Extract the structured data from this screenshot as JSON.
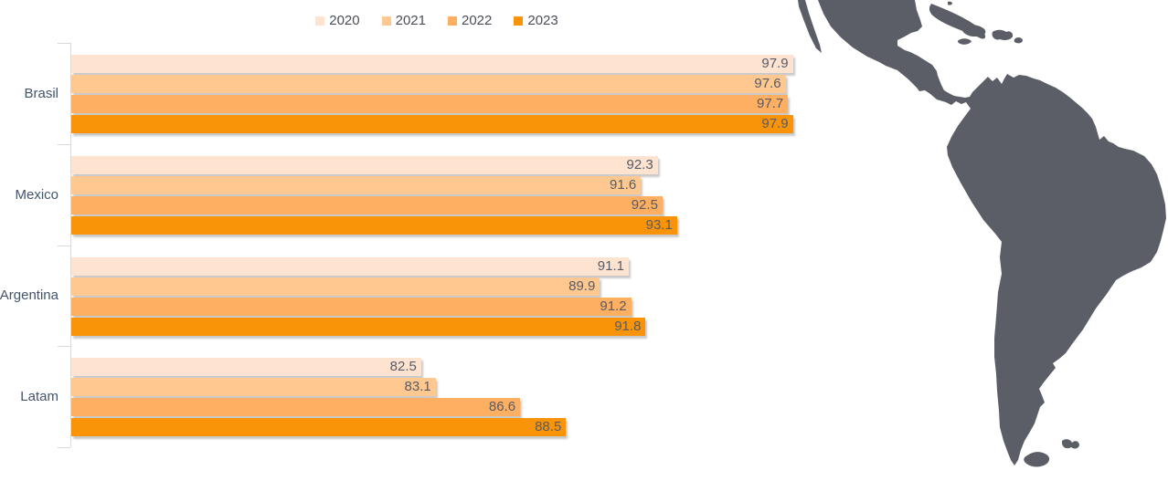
{
  "legend": {
    "items": [
      {
        "label": "2020",
        "color": "#FDE3D0"
      },
      {
        "label": "2021",
        "color": "#FEC890"
      },
      {
        "label": "2022",
        "color": "#FEAF62"
      },
      {
        "label": "2023",
        "color": "#F99408"
      }
    ]
  },
  "chart_data": {
    "type": "bar",
    "orientation": "horizontal",
    "title": "",
    "xlabel": "",
    "ylabel": "",
    "categories": [
      "Brasil",
      "Mexico",
      "Argentina",
      "Latam"
    ],
    "series": [
      {
        "name": "2020",
        "color": "#FDE3D0",
        "values": [
          97.9,
          92.3,
          91.1,
          82.5
        ]
      },
      {
        "name": "2021",
        "color": "#FEC890",
        "values": [
          97.6,
          91.6,
          89.9,
          83.1
        ]
      },
      {
        "name": "2022",
        "color": "#FEAF62",
        "values": [
          97.7,
          92.5,
          91.2,
          86.6
        ]
      },
      {
        "name": "2023",
        "color": "#F99408",
        "values": [
          97.9,
          93.1,
          91.8,
          88.5
        ]
      }
    ],
    "xlim": [
      68,
      100
    ],
    "grid": false,
    "value_labels_shown": true,
    "legend_position": "top",
    "axis_color": "#D9D9D9",
    "category_label_color": "#44546A",
    "value_label_color": "#575B66"
  },
  "map": {
    "name": "latin-america-silhouette",
    "color": "#5B5E66"
  }
}
